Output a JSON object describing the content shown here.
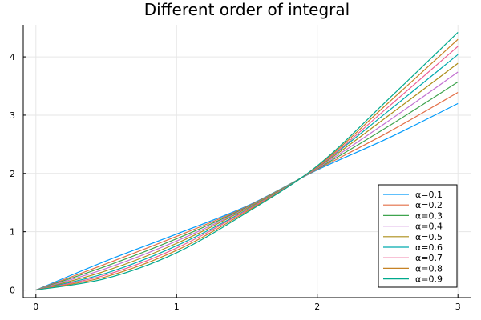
{
  "chart_data": {
    "type": "line",
    "title": "Different order of integral",
    "xlabel": "",
    "ylabel": "",
    "xlim": [
      -0.09,
      3.09
    ],
    "ylim": [
      -0.13,
      4.55
    ],
    "xticks": [
      0,
      1,
      2,
      3
    ],
    "yticks": [
      0,
      1,
      2,
      3,
      4
    ],
    "grid": true,
    "legend_position": "bottom-right",
    "series": [
      {
        "name": "α=0.1",
        "color": "#009AFA",
        "x": [
          0,
          0.5,
          1,
          1.5,
          2,
          2.5,
          3
        ],
        "y": [
          0,
          0.5,
          0.96,
          1.44,
          2.06,
          2.6,
          3.2
        ]
      },
      {
        "name": "α=0.2",
        "color": "#E36F47",
        "x": [
          0,
          0.5,
          1,
          1.5,
          2,
          2.5,
          3
        ],
        "y": [
          0,
          0.45,
          0.92,
          1.43,
          2.07,
          2.7,
          3.39
        ]
      },
      {
        "name": "α=0.3",
        "color": "#3EA44E",
        "x": [
          0,
          0.5,
          1,
          1.5,
          2,
          2.5,
          3
        ],
        "y": [
          0,
          0.41,
          0.88,
          1.42,
          2.08,
          2.8,
          3.57
        ]
      },
      {
        "name": "α=0.4",
        "color": "#C371D2",
        "x": [
          0,
          0.5,
          1,
          1.5,
          2,
          2.5,
          3
        ],
        "y": [
          0,
          0.37,
          0.84,
          1.41,
          2.09,
          2.89,
          3.74
        ]
      },
      {
        "name": "α=0.5",
        "color": "#AC8E18",
        "x": [
          0,
          0.5,
          1,
          1.5,
          2,
          2.5,
          3
        ],
        "y": [
          0,
          0.33,
          0.8,
          1.4,
          2.1,
          2.98,
          3.89
        ]
      },
      {
        "name": "α=0.6",
        "color": "#00AAAE",
        "x": [
          0,
          0.5,
          1,
          1.5,
          2,
          2.5,
          3
        ],
        "y": [
          0,
          0.29,
          0.76,
          1.38,
          2.11,
          3.06,
          4.04
        ]
      },
      {
        "name": "α=0.7",
        "color": "#ED5E93",
        "x": [
          0,
          0.5,
          1,
          1.5,
          2,
          2.5,
          3
        ],
        "y": [
          0,
          0.26,
          0.72,
          1.37,
          2.11,
          3.13,
          4.18
        ]
      },
      {
        "name": "α=0.8",
        "color": "#C68225",
        "x": [
          0,
          0.5,
          1,
          1.5,
          2,
          2.5,
          3
        ],
        "y": [
          0,
          0.23,
          0.68,
          1.35,
          2.12,
          3.2,
          4.3
        ]
      },
      {
        "name": "α=0.9",
        "color": "#00A98D",
        "x": [
          0,
          0.5,
          1,
          1.5,
          2,
          2.5,
          3
        ],
        "y": [
          0,
          0.2,
          0.64,
          1.33,
          2.13,
          3.26,
          4.42
        ]
      }
    ]
  }
}
